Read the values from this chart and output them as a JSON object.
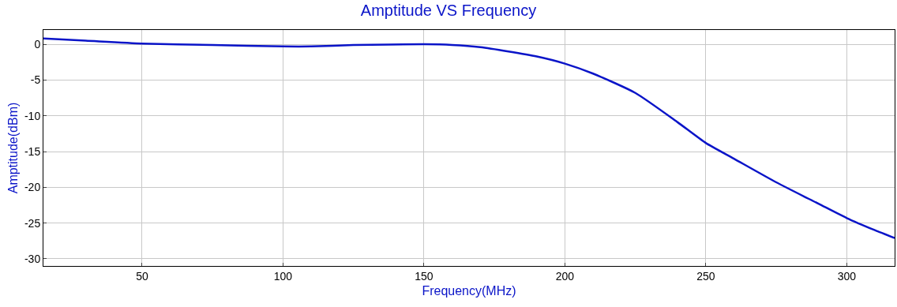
{
  "chart_data": {
    "type": "line",
    "title": "Amptitude VS Frequency",
    "xlabel": "Frequency(MHz)",
    "ylabel": "Amptitude(dBm)",
    "x": [
      15,
      30,
      50,
      75,
      100,
      110,
      125,
      150,
      160,
      170,
      180,
      190,
      200,
      210,
      225,
      240,
      250,
      260,
      275,
      290,
      300,
      310,
      317
    ],
    "series": [
      {
        "color": "#0a14c8",
        "values": [
          0.8,
          0.5,
          0.1,
          -0.1,
          -0.3,
          -0.3,
          -0.1,
          0.0,
          -0.1,
          -0.4,
          -1.0,
          -1.7,
          -2.7,
          -4.1,
          -6.8,
          -10.9,
          -13.8,
          -16.0,
          -19.3,
          -22.3,
          -24.3,
          -26.0,
          -27.1
        ]
      }
    ],
    "xlim": [
      15,
      317
    ],
    "xticks": [
      50,
      100,
      150,
      200,
      250,
      300
    ],
    "ylim": [
      -31,
      2
    ],
    "yticks": [
      0,
      -5,
      -10,
      -15,
      -20,
      -25,
      -30
    ],
    "grid": true,
    "line_style": "solid"
  }
}
